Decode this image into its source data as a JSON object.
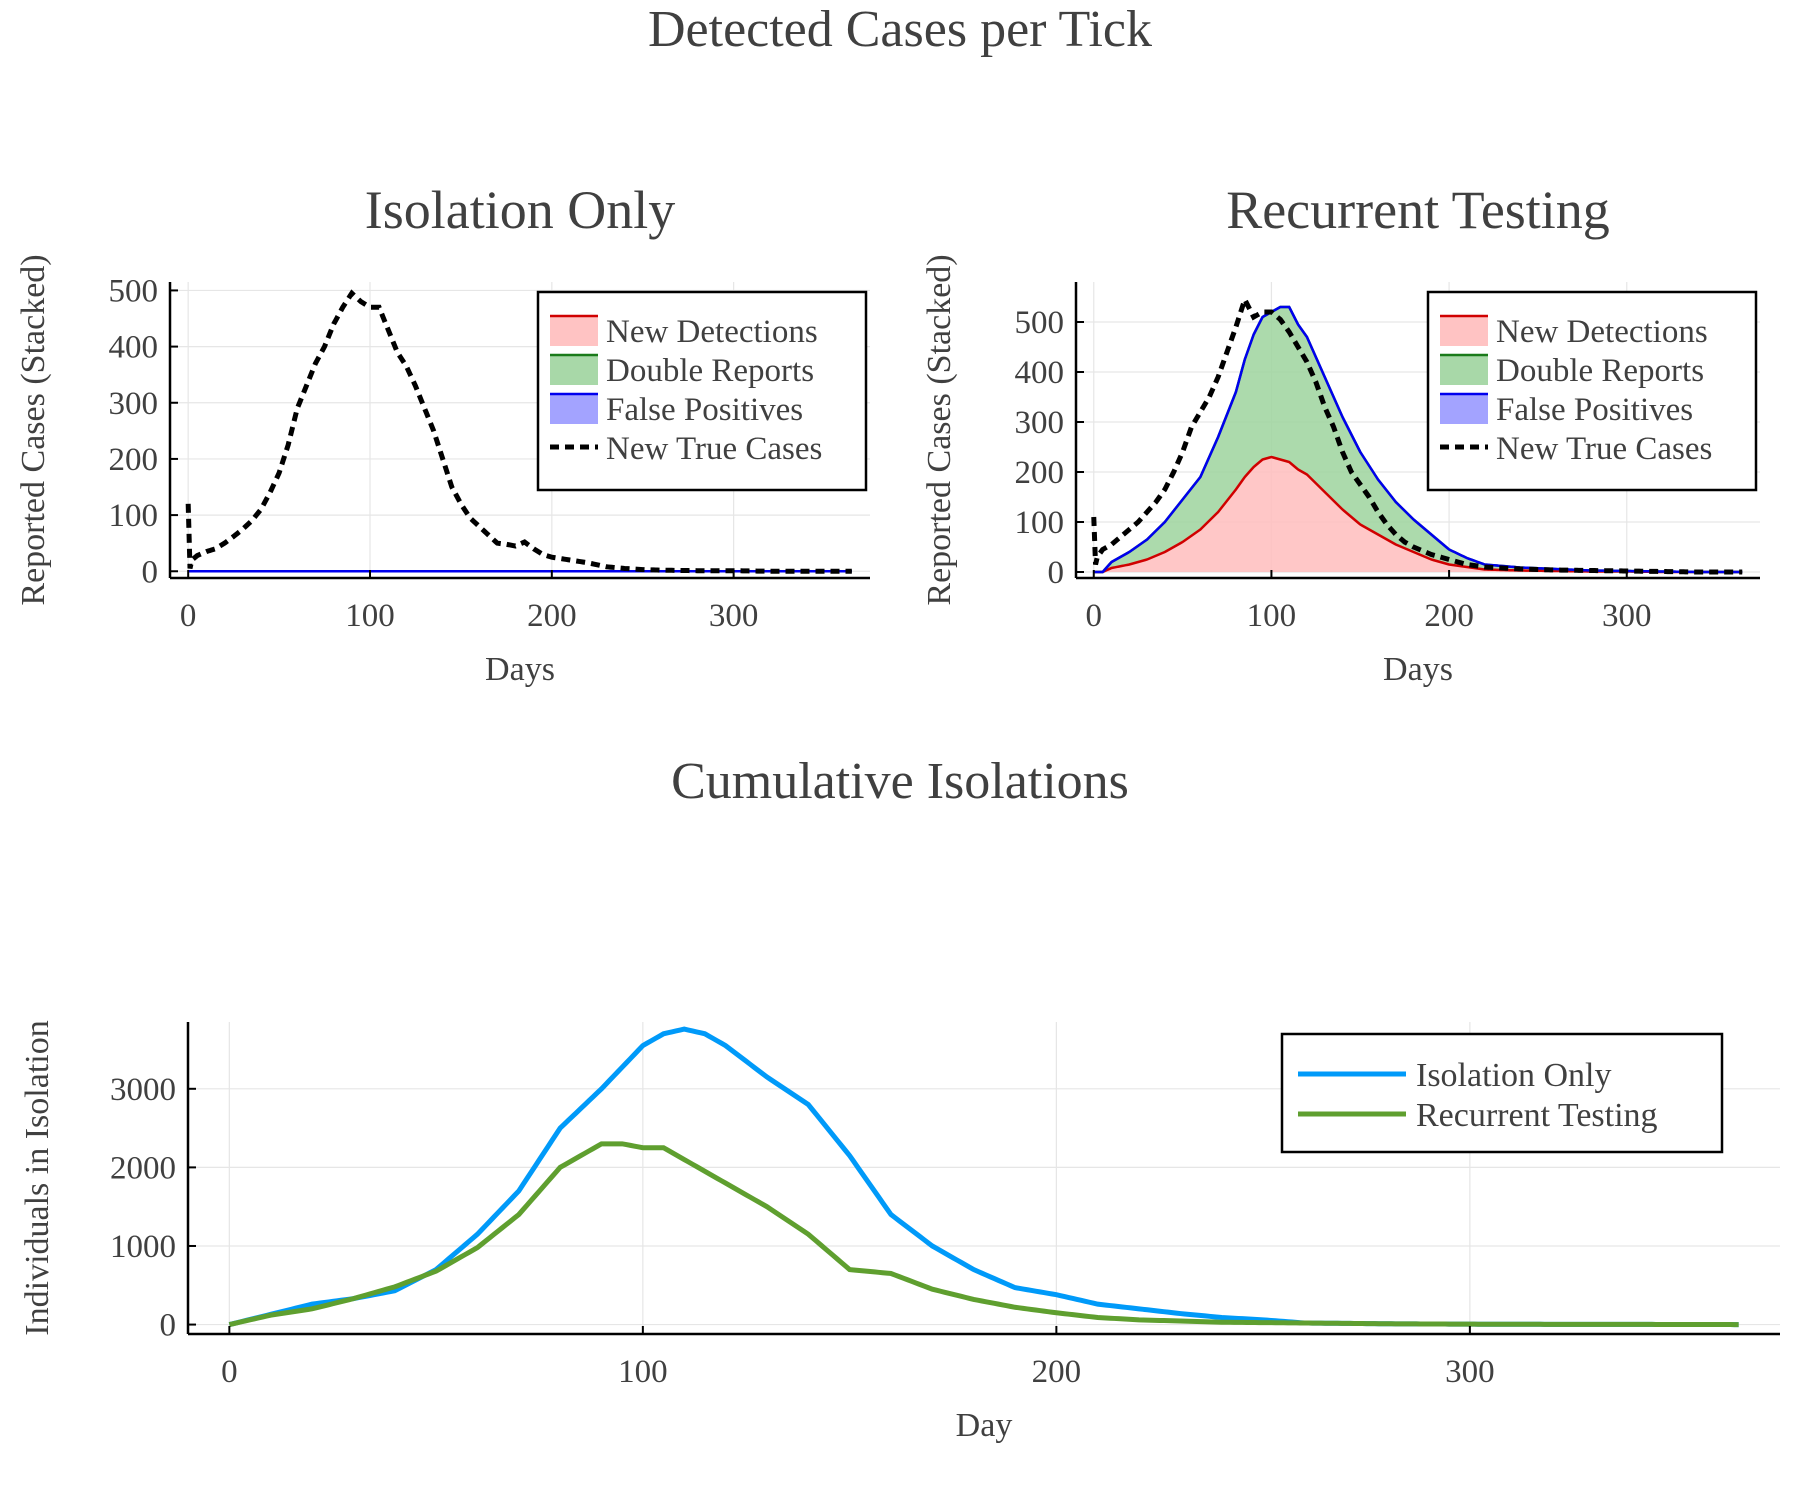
{
  "figure_title": "Detected Cases per Tick",
  "colors": {
    "new_detections_line": "#d00000",
    "new_detections_fill": "#ffbdbd",
    "double_reports_line": "#1a7a1a",
    "double_reports_fill": "#9ed49e",
    "false_positives_line": "#0000ee",
    "false_positives_fill": "#9999ff",
    "new_true_cases": "#000000",
    "isolation_only": "#009af9",
    "recurrent_testing": "#5f9f2f"
  },
  "chart_data": [
    {
      "type": "area",
      "title": "Isolation Only",
      "xlabel": "Days",
      "ylabel": "Reported Cases (Stacked)",
      "xlim": [
        -10,
        375
      ],
      "ylim": [
        -12,
        515
      ],
      "xticks": [
        0,
        100,
        200,
        300
      ],
      "yticks": [
        0,
        100,
        200,
        300,
        400,
        500
      ],
      "grid": true,
      "legend_position": "top-right",
      "series": [
        {
          "name": "New Detections",
          "style": "filled",
          "x": [
            0,
            365
          ],
          "values": [
            0,
            0
          ]
        },
        {
          "name": "Double Reports",
          "style": "filled",
          "x": [
            0,
            365
          ],
          "values": [
            0,
            0
          ]
        },
        {
          "name": "False Positives",
          "style": "filled",
          "x": [
            0,
            365
          ],
          "values": [
            0,
            0
          ]
        },
        {
          "name": "New True Cases",
          "style": "dashed",
          "x": [
            0,
            1,
            2,
            5,
            10,
            15,
            20,
            25,
            30,
            35,
            40,
            45,
            50,
            55,
            60,
            65,
            70,
            75,
            80,
            85,
            90,
            95,
            100,
            105,
            110,
            115,
            120,
            125,
            130,
            135,
            140,
            145,
            150,
            155,
            160,
            165,
            170,
            175,
            180,
            185,
            190,
            195,
            200,
            210,
            220,
            230,
            240,
            250,
            260,
            280,
            300,
            320,
            340,
            365
          ],
          "values": [
            120,
            5,
            20,
            28,
            35,
            40,
            50,
            62,
            75,
            90,
            110,
            140,
            175,
            225,
            290,
            330,
            370,
            400,
            440,
            470,
            495,
            480,
            470,
            470,
            430,
            390,
            365,
            330,
            290,
            250,
            200,
            150,
            120,
            95,
            80,
            65,
            50,
            48,
            45,
            52,
            40,
            30,
            25,
            20,
            15,
            8,
            5,
            3,
            2,
            1,
            1,
            0,
            0,
            0
          ]
        }
      ]
    },
    {
      "type": "area",
      "title": "Recurrent Testing",
      "xlabel": "Days",
      "ylabel": "Reported Cases (Stacked)",
      "xlim": [
        -10,
        375
      ],
      "ylim": [
        -12,
        580
      ],
      "xticks": [
        0,
        100,
        200,
        300
      ],
      "yticks": [
        0,
        100,
        200,
        300,
        400,
        500
      ],
      "grid": true,
      "legend_position": "top-right",
      "series": [
        {
          "name": "New Detections",
          "style": "filled",
          "x": [
            0,
            5,
            10,
            20,
            30,
            40,
            50,
            60,
            70,
            80,
            85,
            90,
            95,
            100,
            105,
            110,
            115,
            120,
            130,
            140,
            150,
            160,
            170,
            180,
            190,
            200,
            210,
            220,
            240,
            260,
            280,
            300,
            320,
            340,
            365
          ],
          "values": [
            0,
            0,
            8,
            15,
            25,
            40,
            60,
            85,
            120,
            165,
            190,
            210,
            225,
            230,
            225,
            220,
            205,
            195,
            160,
            125,
            95,
            75,
            55,
            40,
            25,
            15,
            10,
            5,
            3,
            2,
            1,
            1,
            0,
            0,
            0
          ]
        },
        {
          "name": "Double Reports",
          "style": "filled",
          "x": [
            0,
            5,
            10,
            20,
            30,
            40,
            50,
            60,
            70,
            80,
            85,
            90,
            95,
            100,
            105,
            110,
            115,
            120,
            130,
            140,
            150,
            160,
            170,
            180,
            190,
            200,
            210,
            220,
            240,
            260,
            280,
            300,
            320,
            340,
            365
          ],
          "values": [
            0,
            0,
            12,
            25,
            40,
            60,
            85,
            105,
            150,
            195,
            235,
            265,
            285,
            290,
            305,
            310,
            290,
            275,
            230,
            185,
            145,
            110,
            85,
            65,
            50,
            30,
            18,
            10,
            6,
            4,
            2,
            1,
            1,
            0,
            0
          ]
        },
        {
          "name": "False Positives",
          "style": "filled",
          "x": [
            0,
            365
          ],
          "values": [
            0,
            0
          ]
        },
        {
          "name": "New True Cases",
          "style": "dashed",
          "x": [
            0,
            1,
            2,
            5,
            10,
            15,
            20,
            25,
            30,
            35,
            40,
            45,
            50,
            55,
            60,
            65,
            70,
            75,
            80,
            85,
            90,
            95,
            100,
            105,
            110,
            115,
            120,
            125,
            130,
            135,
            140,
            145,
            150,
            155,
            160,
            165,
            170,
            175,
            180,
            190,
            200,
            210,
            220,
            240,
            260,
            280,
            300,
            320,
            340,
            365
          ],
          "values": [
            110,
            15,
            30,
            45,
            55,
            70,
            85,
            100,
            120,
            140,
            165,
            200,
            240,
            290,
            320,
            350,
            390,
            440,
            490,
            545,
            510,
            520,
            520,
            505,
            480,
            450,
            420,
            380,
            330,
            290,
            240,
            200,
            175,
            150,
            120,
            95,
            75,
            60,
            50,
            35,
            25,
            15,
            10,
            6,
            4,
            3,
            2,
            1,
            0,
            0
          ]
        }
      ]
    },
    {
      "type": "line",
      "title": "Cumulative Isolations",
      "xlabel": "Day",
      "ylabel": "Individuals in Isolation",
      "xlim": [
        -10,
        375
      ],
      "ylim": [
        -120,
        3850
      ],
      "xticks": [
        0,
        100,
        200,
        300
      ],
      "yticks": [
        0,
        1000,
        2000,
        3000
      ],
      "grid": true,
      "legend_position": "top-right",
      "series": [
        {
          "name": "Isolation Only",
          "x": [
            0,
            10,
            20,
            30,
            40,
            50,
            60,
            70,
            80,
            90,
            100,
            105,
            110,
            115,
            120,
            130,
            140,
            150,
            160,
            170,
            180,
            190,
            200,
            210,
            220,
            230,
            240,
            250,
            260,
            280,
            300,
            320,
            340,
            365
          ],
          "values": [
            0,
            130,
            260,
            330,
            430,
            700,
            1150,
            1700,
            2500,
            3000,
            3550,
            3700,
            3760,
            3700,
            3550,
            3150,
            2800,
            2150,
            1400,
            1000,
            700,
            470,
            380,
            260,
            200,
            140,
            90,
            60,
            20,
            10,
            5,
            3,
            2,
            0
          ]
        },
        {
          "name": "Recurrent Testing",
          "x": [
            0,
            10,
            20,
            30,
            40,
            50,
            60,
            70,
            80,
            85,
            90,
            95,
            100,
            105,
            110,
            120,
            130,
            140,
            150,
            160,
            170,
            180,
            190,
            200,
            210,
            220,
            240,
            260,
            280,
            300,
            320,
            340,
            365
          ],
          "values": [
            0,
            120,
            200,
            330,
            480,
            680,
            980,
            1400,
            2000,
            2150,
            2300,
            2300,
            2250,
            2250,
            2100,
            1800,
            1500,
            1150,
            700,
            650,
            450,
            320,
            220,
            150,
            90,
            60,
            30,
            20,
            10,
            5,
            3,
            2,
            0
          ]
        }
      ]
    }
  ]
}
